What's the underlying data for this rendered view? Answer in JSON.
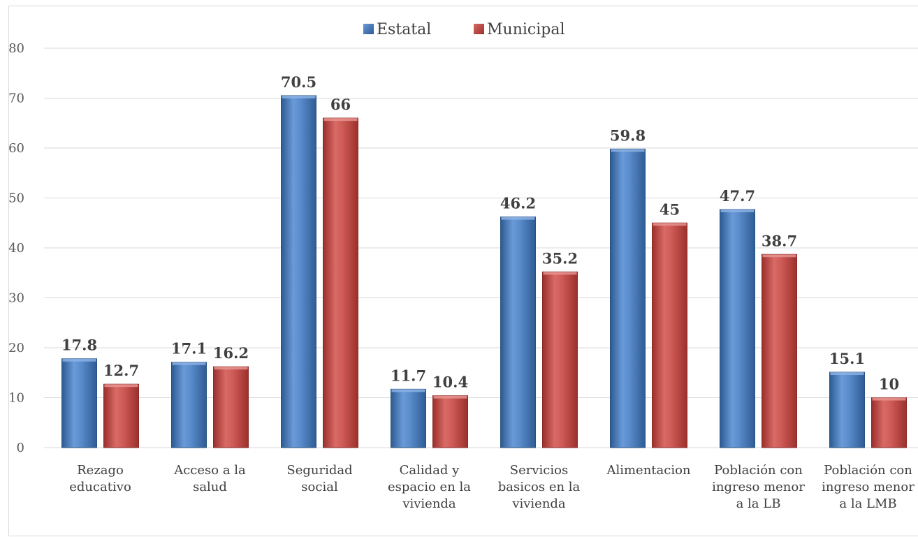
{
  "chart_data": {
    "type": "bar",
    "categories": [
      [
        "Rezago",
        "educativo"
      ],
      [
        "Acceso a la",
        "salud"
      ],
      [
        "Seguridad",
        "social"
      ],
      [
        "Calidad y",
        "espacio en la",
        "vivienda"
      ],
      [
        "Servicios",
        "basicos en la",
        "vivienda"
      ],
      [
        "Alimentacion"
      ],
      [
        "Población con",
        "ingreso menor",
        "a la LB"
      ],
      [
        "Población con",
        "ingreso menor",
        "a la LMB"
      ]
    ],
    "series": [
      {
        "name": "Estatal",
        "values": [
          17.8,
          17.1,
          70.5,
          11.7,
          46.2,
          59.8,
          47.7,
          15.1
        ],
        "color": "#4f81bd"
      },
      {
        "name": "Municipal",
        "values": [
          12.7,
          16.2,
          66,
          10.4,
          35.2,
          45,
          38.7,
          10
        ],
        "color": "#c0504d"
      }
    ],
    "data_labels": [
      [
        "17.8",
        "17.1",
        "70.5",
        "11.7",
        "46.2",
        "59.8",
        "47.7",
        "15.1"
      ],
      [
        "12.7",
        "16.2",
        "66",
        "10.4",
        "35.2",
        "45",
        "38.7",
        "10"
      ]
    ],
    "y_ticks": [
      "0",
      "10",
      "20",
      "30",
      "40",
      "50",
      "60",
      "70",
      "80"
    ],
    "ylim": [
      0,
      80
    ],
    "grid": true,
    "legend_position": "top-center",
    "title": "",
    "xlabel": "",
    "ylabel": ""
  }
}
